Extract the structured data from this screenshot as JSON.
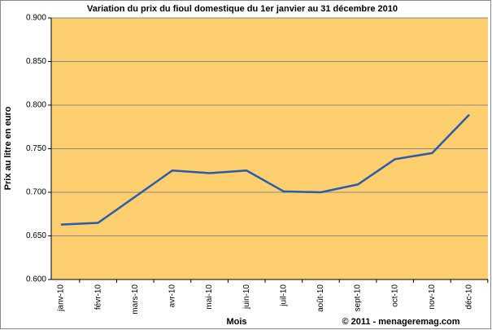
{
  "chart_data": {
    "type": "line",
    "title": "Variation du prix du fioul domestique du 1er janvier au 31 décembre 2010",
    "y_label": "Prix au litre en euro",
    "x_label": "Mois",
    "annotation": "© 2011 - menageremag.com",
    "categories": [
      "janv-10",
      "févr-10",
      "mars-10",
      "avr-10",
      "mai-10",
      "juin-10",
      "juil-10",
      "août-10",
      "sept-10",
      "oct-10",
      "nov-10",
      "déc-10"
    ],
    "values": [
      0.663,
      0.665,
      0.695,
      0.725,
      0.722,
      0.725,
      0.701,
      0.7,
      0.709,
      0.738,
      0.745,
      0.789
    ],
    "color": "#2a5caa",
    "ylim": [
      0.6,
      0.9
    ],
    "yticks": [
      {
        "value": 0.6,
        "label": "0.600"
      },
      {
        "value": 0.65,
        "label": "0.650"
      },
      {
        "value": 0.7,
        "label": "0.700"
      },
      {
        "value": 0.75,
        "label": "0.750"
      },
      {
        "value": 0.8,
        "label": "0.800"
      },
      {
        "value": 0.85,
        "label": "0.850"
      },
      {
        "value": 0.9,
        "label": "0.900"
      }
    ],
    "grid": true
  }
}
